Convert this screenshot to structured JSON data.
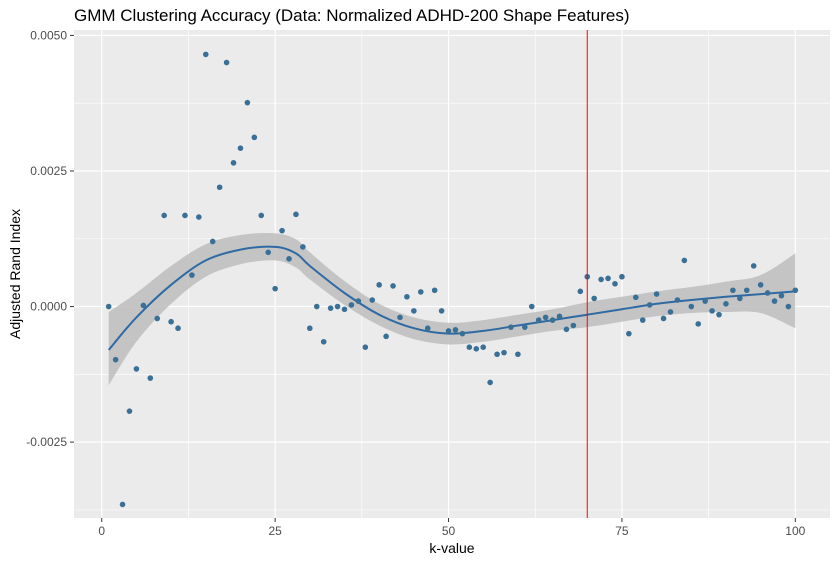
{
  "chart_data": {
    "type": "scatter",
    "title": "GMM Clustering Accuracy (Data: Normalized ADHD-200 Shape Features)",
    "xlabel": "k-value",
    "ylabel": "Adjusted Rand Index",
    "xlim": [
      -4,
      105
    ],
    "ylim": [
      -0.0039,
      0.0051
    ],
    "x_ticks": [
      0,
      25,
      50,
      75,
      100
    ],
    "x_tick_labels": [
      "0",
      "25",
      "50",
      "75",
      "100"
    ],
    "y_ticks": [
      -0.0025,
      0.0,
      0.0025,
      0.005
    ],
    "y_tick_labels": [
      "-0.0025",
      "0.0000",
      "0.0025",
      "0.0050"
    ],
    "grid": true,
    "vline": {
      "x": 70,
      "color": "#ff0000"
    },
    "colors": {
      "points": "#3a6f96",
      "smooth": "#2f6aa3",
      "band": "#bdbdbd",
      "panel": "#ebebeb",
      "grid": "#ffffff"
    },
    "points": {
      "x": [
        1,
        2,
        3,
        4,
        5,
        6,
        7,
        8,
        9,
        10,
        11,
        12,
        13,
        14,
        15,
        16,
        17,
        18,
        19,
        20,
        21,
        22,
        23,
        24,
        25,
        26,
        27,
        28,
        29,
        30,
        31,
        32,
        33,
        34,
        35,
        36,
        37,
        38,
        39,
        40,
        41,
        42,
        43,
        44,
        45,
        46,
        47,
        48,
        49,
        50,
        51,
        52,
        53,
        54,
        55,
        56,
        57,
        58,
        59,
        60,
        61,
        62,
        63,
        64,
        65,
        66,
        67,
        68,
        69,
        70,
        71,
        72,
        73,
        74,
        75,
        76,
        77,
        78,
        79,
        80,
        81,
        82,
        83,
        84,
        85,
        86,
        87,
        88,
        89,
        90,
        91,
        92,
        93,
        94,
        95,
        96,
        97,
        98,
        99,
        100
      ],
      "y": [
        0.0,
        -0.00098,
        -0.00365,
        -0.00193,
        -0.00115,
        2e-05,
        -0.00132,
        -0.00022,
        0.00168,
        -0.00028,
        -0.0004,
        0.00168,
        0.00058,
        0.00165,
        0.00465,
        0.0012,
        0.0022,
        0.0045,
        0.00265,
        0.00292,
        0.00376,
        0.00312,
        0.00168,
        0.001,
        0.00033,
        0.0014,
        0.00088,
        0.0017,
        0.0011,
        -0.0004,
        0.0,
        -0.00065,
        -3e-05,
        0.0,
        -5e-05,
        3e-05,
        0.0001,
        -0.00075,
        0.00012,
        0.0004,
        -0.00055,
        0.00038,
        -0.0002,
        0.00018,
        -8e-05,
        0.00027,
        -0.0004,
        0.0003,
        -8e-05,
        -0.00045,
        -0.00043,
        -0.0005,
        -0.00075,
        -0.00078,
        -0.00075,
        -0.0014,
        -0.00088,
        -0.00085,
        -0.00038,
        -0.00088,
        -0.00038,
        0.0,
        -0.00025,
        -0.0002,
        -0.00025,
        -0.00018,
        -0.00042,
        -0.00035,
        0.00028,
        0.00055,
        0.00015,
        0.0005,
        0.00052,
        0.00042,
        0.00055,
        -0.0005,
        0.00017,
        -0.00025,
        3e-05,
        0.00023,
        -0.00022,
        -0.0001,
        0.00012,
        0.00085,
        0.0,
        -0.00032,
        0.0001,
        -8e-05,
        -0.00015,
        5e-05,
        0.0003,
        0.00015,
        0.0003,
        0.00075,
        0.0004,
        0.00025,
        0.0001,
        0.0002,
        0.0,
        0.0003
      ]
    },
    "smooth": {
      "x": [
        1,
        5,
        10,
        15,
        20,
        25,
        28,
        30,
        35,
        40,
        45,
        50,
        55,
        60,
        65,
        70,
        75,
        80,
        85,
        90,
        95,
        100
      ],
      "y": [
        -0.0008,
        -0.0002,
        0.0004,
        0.00085,
        0.00105,
        0.0011,
        0.00098,
        0.00075,
        0.00025,
        -0.00015,
        -0.0004,
        -0.0005,
        -0.00045,
        -0.00035,
        -0.00025,
        -0.00015,
        -5e-05,
        5e-05,
        0.00012,
        0.00018,
        0.00023,
        0.00028
      ],
      "lower": [
        -0.00145,
        -0.00065,
        5e-05,
        0.00055,
        0.00078,
        0.00085,
        0.00072,
        0.0005,
        3e-05,
        -0.00035,
        -0.0006,
        -0.0007,
        -0.00065,
        -0.00055,
        -0.00045,
        -0.00038,
        -0.00028,
        -0.00018,
        -0.00012,
        -0.0001,
        -0.00012,
        -0.0004
      ],
      "upper": [
        -0.0001,
        0.00025,
        0.00075,
        0.00115,
        0.00132,
        0.00135,
        0.00124,
        0.001,
        0.00047,
        5e-05,
        -0.0002,
        -0.0003,
        -0.00025,
        -0.00015,
        -5e-05,
        8e-05,
        0.00018,
        0.00028,
        0.00036,
        0.00046,
        0.00058,
        0.00098
      ]
    }
  }
}
